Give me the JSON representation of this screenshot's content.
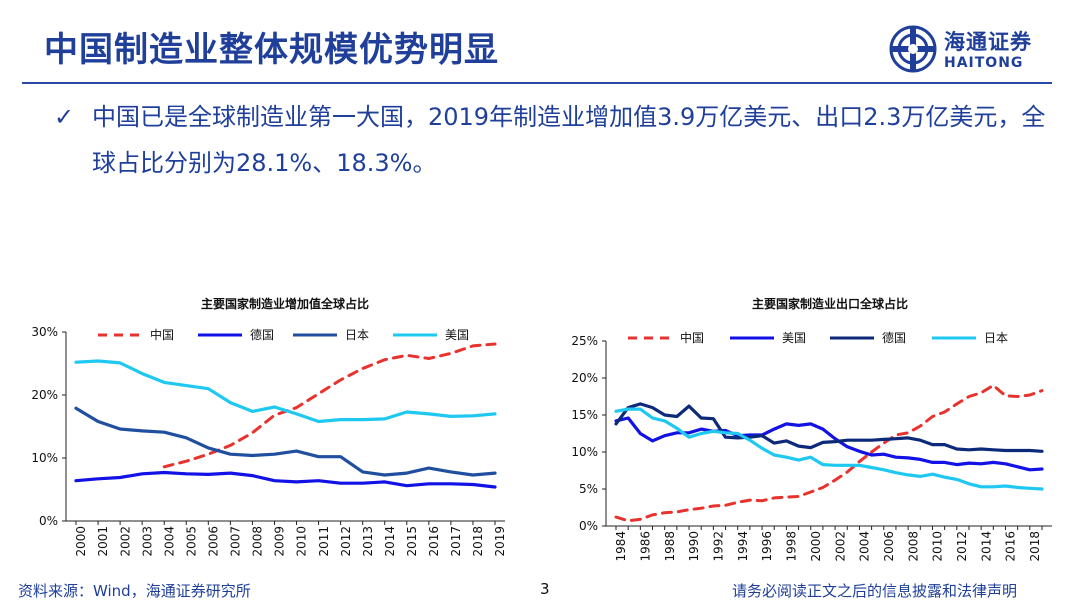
{
  "header": {
    "title": "中国制造业整体规模优势明显",
    "logo_cn": "海通证券",
    "logo_en": "HAITONG"
  },
  "bullet": {
    "mark": "✓",
    "text": "中国已是全球制造业第一大国，2019年制造业增加值3.9万亿美元、出口2.3万亿美元，全球占比分别为28.1%、18.3%。"
  },
  "footer": {
    "source": "资料来源：Wind，海通证券研究所",
    "page": "3",
    "disclaimer": "请务必阅读正文之后的信息披露和法律声明"
  },
  "colors": {
    "brand": "#1f3f9a",
    "china": "#e8322d",
    "germany_left": "#1212e6",
    "japan_left": "#1f4f9e",
    "usa_left": "#1ec8f0",
    "usa_right": "#1212e6",
    "germany_right": "#0d2a7a",
    "japan_right": "#1ec8f0"
  },
  "chart_data": [
    {
      "type": "line",
      "title": "主要国家制造业增加值全球占比",
      "x": [
        "2000",
        "2001",
        "2002",
        "2003",
        "2004",
        "2005",
        "2006",
        "2007",
        "2008",
        "2009",
        "2010",
        "2011",
        "2012",
        "2013",
        "2014",
        "2015",
        "2016",
        "2017",
        "2018",
        "2019"
      ],
      "ylim": [
        0,
        30
      ],
      "yticks": [
        "0%",
        "10%",
        "20%",
        "30%"
      ],
      "legend_position": "top",
      "series": [
        {
          "name": "中国",
          "style": "dashed",
          "color": "#e8322d",
          "values": [
            null,
            null,
            null,
            null,
            8.6,
            9.5,
            10.6,
            12.0,
            14.0,
            16.8,
            18.0,
            20.2,
            22.4,
            24.2,
            25.6,
            26.3,
            25.8,
            26.6,
            27.8,
            28.1
          ]
        },
        {
          "name": "德国",
          "style": "solid",
          "color": "#1212e6",
          "values": [
            6.4,
            6.7,
            6.9,
            7.5,
            7.7,
            7.5,
            7.4,
            7.6,
            7.2,
            6.4,
            6.2,
            6.4,
            6.0,
            6.0,
            6.2,
            5.6,
            5.9,
            5.9,
            5.8,
            5.4
          ]
        },
        {
          "name": "日本",
          "style": "solid",
          "color": "#1f4f9e",
          "values": [
            17.9,
            15.8,
            14.6,
            14.3,
            14.1,
            13.2,
            11.6,
            10.6,
            10.4,
            10.6,
            11.1,
            10.2,
            10.2,
            7.8,
            7.3,
            7.6,
            8.4,
            7.8,
            7.3,
            7.6
          ]
        },
        {
          "name": "美国",
          "style": "solid",
          "color": "#1ec8f0",
          "values": [
            25.2,
            25.4,
            25.1,
            23.4,
            22.0,
            21.5,
            21.0,
            18.8,
            17.4,
            18.1,
            17.0,
            15.8,
            16.1,
            16.1,
            16.2,
            17.3,
            17.0,
            16.6,
            16.7,
            17.0
          ]
        }
      ]
    },
    {
      "type": "line",
      "title": "主要国家制造业出口全球占比",
      "x": [
        "1984",
        "1985",
        "1986",
        "1987",
        "1988",
        "1989",
        "1990",
        "1991",
        "1992",
        "1993",
        "1994",
        "1995",
        "1996",
        "1997",
        "1998",
        "1999",
        "2000",
        "2001",
        "2002",
        "2003",
        "2004",
        "2005",
        "2006",
        "2007",
        "2008",
        "2009",
        "2010",
        "2011",
        "2012",
        "2013",
        "2014",
        "2015",
        "2016",
        "2017",
        "2018",
        "2019"
      ],
      "xticks": [
        "1984",
        "1986",
        "1988",
        "1990",
        "1992",
        "1994",
        "1996",
        "1998",
        "2000",
        "2002",
        "2004",
        "2006",
        "2008",
        "2010",
        "2012",
        "2014",
        "2016",
        "2018"
      ],
      "ylim": [
        0,
        25
      ],
      "yticks": [
        "0%",
        "5%",
        "10%",
        "15%",
        "20%",
        "25%"
      ],
      "legend_position": "top",
      "series": [
        {
          "name": "中国",
          "style": "dashed",
          "color": "#e8322d",
          "values": [
            1.2,
            0.7,
            0.9,
            1.5,
            1.8,
            1.9,
            2.2,
            2.4,
            2.7,
            2.8,
            3.2,
            3.5,
            3.4,
            3.8,
            3.9,
            4.0,
            4.6,
            5.2,
            6.2,
            7.3,
            8.7,
            10.0,
            11.2,
            12.3,
            12.6,
            13.5,
            14.8,
            15.4,
            16.5,
            17.5,
            18.0,
            19.0,
            17.6,
            17.5,
            17.7,
            18.3
          ]
        },
        {
          "name": "美国",
          "style": "solid",
          "color": "#1212e6",
          "values": [
            14.2,
            14.6,
            12.5,
            11.5,
            12.2,
            12.6,
            12.6,
            13.1,
            12.8,
            12.9,
            12.2,
            12.3,
            12.3,
            13.1,
            13.8,
            13.6,
            13.8,
            13.1,
            11.8,
            10.7,
            10.1,
            9.6,
            9.7,
            9.3,
            9.2,
            9.0,
            8.6,
            8.6,
            8.3,
            8.5,
            8.4,
            8.6,
            8.4,
            8.0,
            7.6,
            7.7
          ]
        },
        {
          "name": "德国",
          "style": "solid",
          "color": "#0d2a7a",
          "values": [
            13.8,
            16.0,
            16.5,
            16.0,
            15.0,
            14.8,
            16.2,
            14.6,
            14.5,
            12.0,
            11.9,
            12.0,
            12.2,
            11.2,
            11.5,
            10.8,
            10.6,
            11.3,
            11.4,
            11.6,
            11.6,
            11.6,
            11.7,
            11.8,
            11.9,
            11.6,
            11.0,
            11.0,
            10.4,
            10.3,
            10.4,
            10.3,
            10.2,
            10.2,
            10.2,
            10.1
          ]
        },
        {
          "name": "日本",
          "style": "solid",
          "color": "#1ec8f0",
          "values": [
            15.5,
            15.8,
            15.8,
            14.6,
            14.2,
            13.2,
            12.0,
            12.5,
            12.8,
            12.6,
            12.5,
            11.6,
            10.5,
            9.6,
            9.3,
            8.9,
            9.3,
            8.3,
            8.2,
            8.2,
            8.2,
            7.9,
            7.6,
            7.2,
            6.9,
            6.7,
            7.0,
            6.6,
            6.3,
            5.7,
            5.3,
            5.3,
            5.4,
            5.2,
            5.1,
            5.0
          ]
        }
      ]
    }
  ]
}
